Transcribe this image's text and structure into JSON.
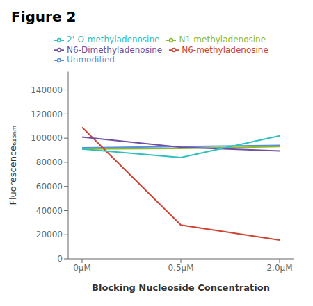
{
  "chart_data": {
    "type": "line",
    "title": "Figure 2",
    "xlabel": "Blocking Nucleoside Concentration",
    "ylabel": "Fluorescence₆₁₅ₙₘ",
    "categories": [
      "0μM",
      "0.5μM",
      "2.0μM"
    ],
    "series": [
      {
        "name": "Unmodified",
        "color": "#5b8fd6",
        "values": [
          92000,
          93000,
          94000
        ]
      },
      {
        "name": "N1-methyladenosine",
        "color": "#8ab833",
        "values": [
          91000,
          91500,
          93000
        ]
      },
      {
        "name": "N6-methyladenosine",
        "color": "#cc4433",
        "values": [
          109000,
          28000,
          15500
        ]
      },
      {
        "name": "N6-Dimethyladenosine",
        "color": "#7050a0",
        "values": [
          101000,
          92500,
          89500
        ]
      },
      {
        "name": "2'-O-methyladenosine",
        "color": "#30bfbf",
        "values": [
          91000,
          84000,
          102000
        ]
      }
    ],
    "ylim": [
      0,
      155000
    ],
    "yticks": [
      0,
      20000,
      40000,
      60000,
      80000,
      100000,
      120000,
      140000
    ],
    "grid": false,
    "legend": "top"
  }
}
